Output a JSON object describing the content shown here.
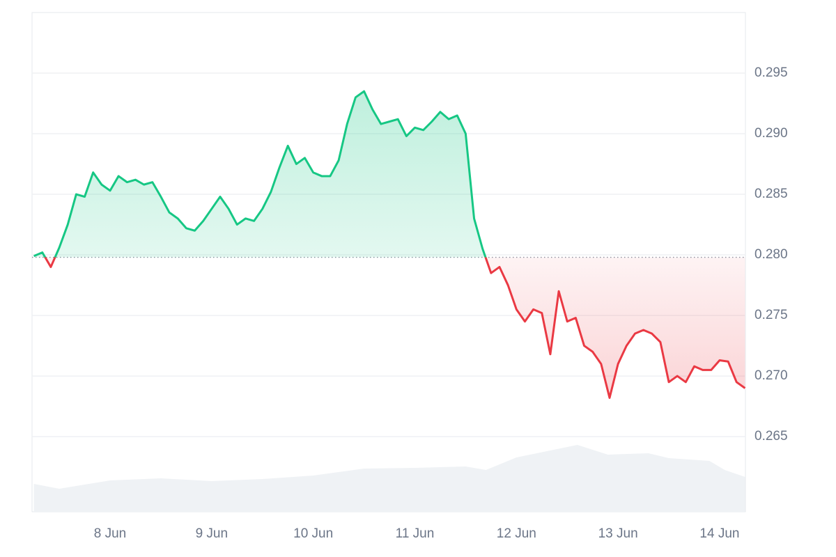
{
  "chart_data": {
    "type": "line",
    "x": [
      7.25,
      7.3333,
      7.4167,
      7.5,
      7.5833,
      7.6667,
      7.75,
      7.8333,
      7.9167,
      8,
      8.0833,
      8.1667,
      8.25,
      8.3333,
      8.4167,
      8.5,
      8.5833,
      8.6667,
      8.75,
      8.8333,
      8.9167,
      9,
      9.0833,
      9.1667,
      9.25,
      9.3333,
      9.4167,
      9.5,
      9.5833,
      9.6667,
      9.75,
      9.8333,
      9.9167,
      10,
      10.0833,
      10.1667,
      10.25,
      10.3333,
      10.4167,
      10.5,
      10.5833,
      10.6667,
      10.75,
      10.8333,
      10.9167,
      11,
      11.0833,
      11.1667,
      11.25,
      11.3333,
      11.4167,
      11.5,
      11.5833,
      11.6667,
      11.75,
      11.8333,
      11.9167,
      12,
      12.0833,
      12.1667,
      12.25,
      12.3333,
      12.4167,
      12.5,
      12.5833,
      12.6667,
      12.75,
      12.8333,
      12.9167,
      13,
      13.0833,
      13.1667,
      13.25,
      13.3333,
      13.4167,
      13.5,
      13.5833,
      13.6667,
      13.75,
      13.8333,
      13.9167,
      14,
      14.0833,
      14.1667,
      14.25
    ],
    "series": [
      {
        "values": [
          0.2799,
          0.2802,
          0.279,
          0.2806,
          0.2825,
          0.285,
          0.2848,
          0.2868,
          0.2858,
          0.2853,
          0.2865,
          0.286,
          0.2862,
          0.2858,
          0.286,
          0.2848,
          0.2835,
          0.283,
          0.2822,
          0.282,
          0.2828,
          0.2838,
          0.2848,
          0.2838,
          0.2825,
          0.283,
          0.2828,
          0.2838,
          0.2852,
          0.2872,
          0.289,
          0.2875,
          0.288,
          0.2868,
          0.2865,
          0.2865,
          0.2878,
          0.2908,
          0.293,
          0.2935,
          0.292,
          0.2908,
          0.291,
          0.2912,
          0.2898,
          0.2905,
          0.2903,
          0.291,
          0.2918,
          0.2912,
          0.2915,
          0.29,
          0.283,
          0.2805,
          0.2785,
          0.279,
          0.2775,
          0.2755,
          0.2745,
          0.2755,
          0.2752,
          0.2718,
          0.277,
          0.2745,
          0.2748,
          0.2725,
          0.272,
          0.271,
          0.2682,
          0.271,
          0.2725,
          0.2735,
          0.2738,
          0.2735,
          0.2728,
          0.2695,
          0.27,
          0.2695,
          0.2708,
          0.2705,
          0.2705,
          0.2713,
          0.2712,
          0.2695,
          0.269
        ]
      }
    ],
    "baseline": 0.2798,
    "up_color": "#16c784",
    "down_color": "#ea3943",
    "volume": {
      "x": [
        7.25,
        7.5,
        8,
        8.5,
        9,
        9.5,
        10,
        10.5,
        11,
        11.5,
        11.7,
        12,
        12.4,
        12.6,
        12.9,
        13.3,
        13.5,
        13.9,
        14.05,
        14.25
      ],
      "values": [
        40,
        33,
        45,
        48,
        44,
        47,
        52,
        62,
        63,
        65,
        60,
        78,
        90,
        96,
        82,
        84,
        77,
        73,
        60,
        50
      ],
      "ylim": [
        0,
        100
      ],
      "color": "#eff2f5"
    },
    "xlim": [
      7.232,
      14.254
    ],
    "xticks": [
      {
        "value": 8,
        "label": "8 Jun"
      },
      {
        "value": 9,
        "label": "9 Jun"
      },
      {
        "value": 10,
        "label": "10 Jun"
      },
      {
        "value": 11,
        "label": "11 Jun"
      },
      {
        "value": 12,
        "label": "12 Jun"
      },
      {
        "value": 13,
        "label": "13 Jun"
      },
      {
        "value": 14,
        "label": "14 Jun"
      }
    ],
    "ylim": [
      0.2588,
      0.3
    ],
    "yticks": [
      0.265,
      {
        "value": 0.27,
        "label": "0.270"
      },
      0.275,
      {
        "value": 0.28,
        "label": "0.280"
      },
      0.285,
      {
        "value": 0.29,
        "label": "0.290"
      },
      0.295
    ],
    "grid": true
  }
}
